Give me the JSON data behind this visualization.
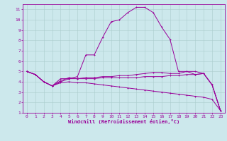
{
  "background_color": "#cce8ec",
  "grid_color": "#aacccc",
  "line_color": "#990099",
  "xlabel": "Windchill (Refroidissement éolien,°C)",
  "xlim": [
    -0.5,
    23.5
  ],
  "ylim": [
    1,
    11.5
  ],
  "xticks": [
    0,
    1,
    2,
    3,
    4,
    5,
    6,
    7,
    8,
    9,
    10,
    11,
    12,
    13,
    14,
    15,
    16,
    17,
    18,
    19,
    20,
    21,
    22,
    23
  ],
  "yticks": [
    1,
    2,
    3,
    4,
    5,
    6,
    7,
    8,
    9,
    10,
    11
  ],
  "curve1_x": [
    0,
    1,
    2,
    3,
    4,
    5,
    6,
    7,
    8,
    9,
    10,
    11,
    12,
    13,
    14,
    15,
    16,
    17,
    18,
    19,
    20,
    21,
    22,
    23
  ],
  "curve1_y": [
    5.0,
    4.7,
    4.0,
    3.6,
    4.3,
    4.3,
    4.5,
    6.6,
    6.6,
    8.3,
    9.8,
    10.0,
    10.7,
    11.2,
    11.2,
    10.7,
    9.3,
    8.1,
    5.0,
    5.0,
    4.7,
    4.8,
    3.7,
    1.2
  ],
  "curve2_x": [
    0,
    1,
    2,
    3,
    4,
    5,
    6,
    7,
    8,
    9,
    10,
    11,
    12,
    13,
    14,
    15,
    16,
    17,
    18,
    19,
    20,
    21,
    22,
    23
  ],
  "curve2_y": [
    5.0,
    4.7,
    4.0,
    3.6,
    4.1,
    4.4,
    4.3,
    4.4,
    4.4,
    4.5,
    4.5,
    4.6,
    4.6,
    4.7,
    4.8,
    4.9,
    4.9,
    4.8,
    4.8,
    5.0,
    5.0,
    4.8,
    3.7,
    1.2
  ],
  "curve3_x": [
    0,
    1,
    2,
    3,
    4,
    5,
    6,
    7,
    8,
    9,
    10,
    11,
    12,
    13,
    14,
    15,
    16,
    17,
    18,
    19,
    20,
    21,
    22,
    23
  ],
  "curve3_y": [
    5.0,
    4.7,
    4.0,
    3.6,
    4.0,
    4.3,
    4.3,
    4.3,
    4.3,
    4.4,
    4.4,
    4.4,
    4.4,
    4.4,
    4.5,
    4.5,
    4.5,
    4.6,
    4.6,
    4.7,
    4.7,
    4.8,
    3.7,
    1.2
  ],
  "curve4_x": [
    0,
    1,
    2,
    3,
    4,
    5,
    6,
    7,
    8,
    9,
    10,
    11,
    12,
    13,
    14,
    15,
    16,
    17,
    18,
    19,
    20,
    21,
    22,
    23
  ],
  "curve4_y": [
    5.0,
    4.7,
    4.0,
    3.6,
    3.9,
    4.0,
    3.9,
    3.9,
    3.8,
    3.7,
    3.6,
    3.5,
    3.4,
    3.3,
    3.2,
    3.1,
    3.0,
    2.9,
    2.8,
    2.7,
    2.6,
    2.5,
    2.3,
    1.2
  ]
}
